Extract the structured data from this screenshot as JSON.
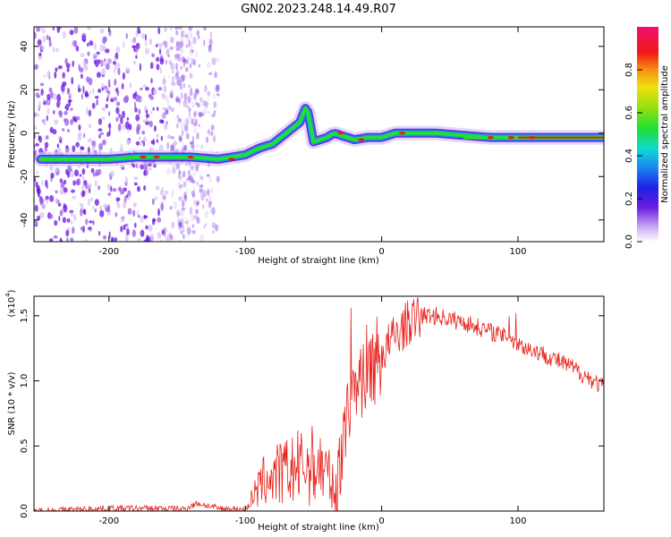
{
  "title": "GN02.2023.248.14.49.R07",
  "chart_data": [
    {
      "type": "heatmap",
      "title": "GN02.2023.248.14.49.R07",
      "xlabel": "Height of straight line (km)",
      "ylabel": "Frequency (Hz)",
      "xlim": [
        -255,
        163
      ],
      "ylim": [
        -50,
        49
      ],
      "xticks": [
        -200,
        -100,
        0,
        100
      ],
      "yticks": [
        -40,
        -20,
        0,
        20,
        40
      ],
      "colorbar": {
        "label": "Normalized spectral amplitude",
        "range": [
          0,
          1
        ],
        "ticks": [
          "0.0",
          "0.2",
          "0.4",
          "0.6",
          "0.8"
        ]
      },
      "ridge": {
        "x": [
          -250,
          -220,
          -200,
          -180,
          -160,
          -140,
          -120,
          -100,
          -90,
          -80,
          -70,
          -60,
          -55,
          -50,
          -45,
          -40,
          -35,
          -30,
          -20,
          -10,
          0,
          10,
          20,
          40,
          60,
          80,
          100,
          120,
          163
        ],
        "y": [
          -12,
          -12,
          -12,
          -11,
          -11,
          -11,
          -12,
          -10,
          -7,
          -5,
          0,
          5,
          13,
          -4,
          -3,
          -2,
          0,
          -1,
          -3,
          -2,
          -2,
          0,
          0,
          0,
          -1,
          -2,
          -2,
          -2,
          -2
        ]
      },
      "grid": false
    },
    {
      "type": "line",
      "xlabel": "Height of straight line (km)",
      "ylabel": "SNR (10 * v/v)",
      "yscale_label": "(x10",
      "yscale_exp": "4",
      "xlim": [
        -255,
        163
      ],
      "ylim": [
        0,
        16500
      ],
      "xticks": [
        -200,
        -100,
        0,
        100
      ],
      "ytick_labels": [
        "0.0",
        "0.5",
        "1.0",
        "1.5"
      ],
      "yticks": [
        0,
        5000,
        10000,
        15000
      ],
      "series": [
        {
          "color": "#e8231e",
          "x": [
            -255,
            -200,
            -160,
            -145,
            -135,
            -120,
            -100,
            -95,
            -85,
            -70,
            -55,
            -45,
            -38,
            -33,
            -28,
            -24,
            -20,
            -15,
            -10,
            -5,
            0,
            10,
            20,
            30,
            40,
            60,
            80,
            95,
            100,
            120,
            140,
            163
          ],
          "y": [
            0,
            200,
            200,
            150,
            600,
            200,
            100,
            1000,
            2500,
            3000,
            3500,
            3500,
            2500,
            1000,
            7000,
            8500,
            9500,
            10500,
            11000,
            11500,
            12000,
            13500,
            14500,
            15000,
            15000,
            14500,
            13800,
            13200,
            12800,
            12000,
            11000,
            9500
          ]
        }
      ]
    }
  ],
  "colors": {
    "line": "#e8231e",
    "scatter": "#7a2be0"
  }
}
